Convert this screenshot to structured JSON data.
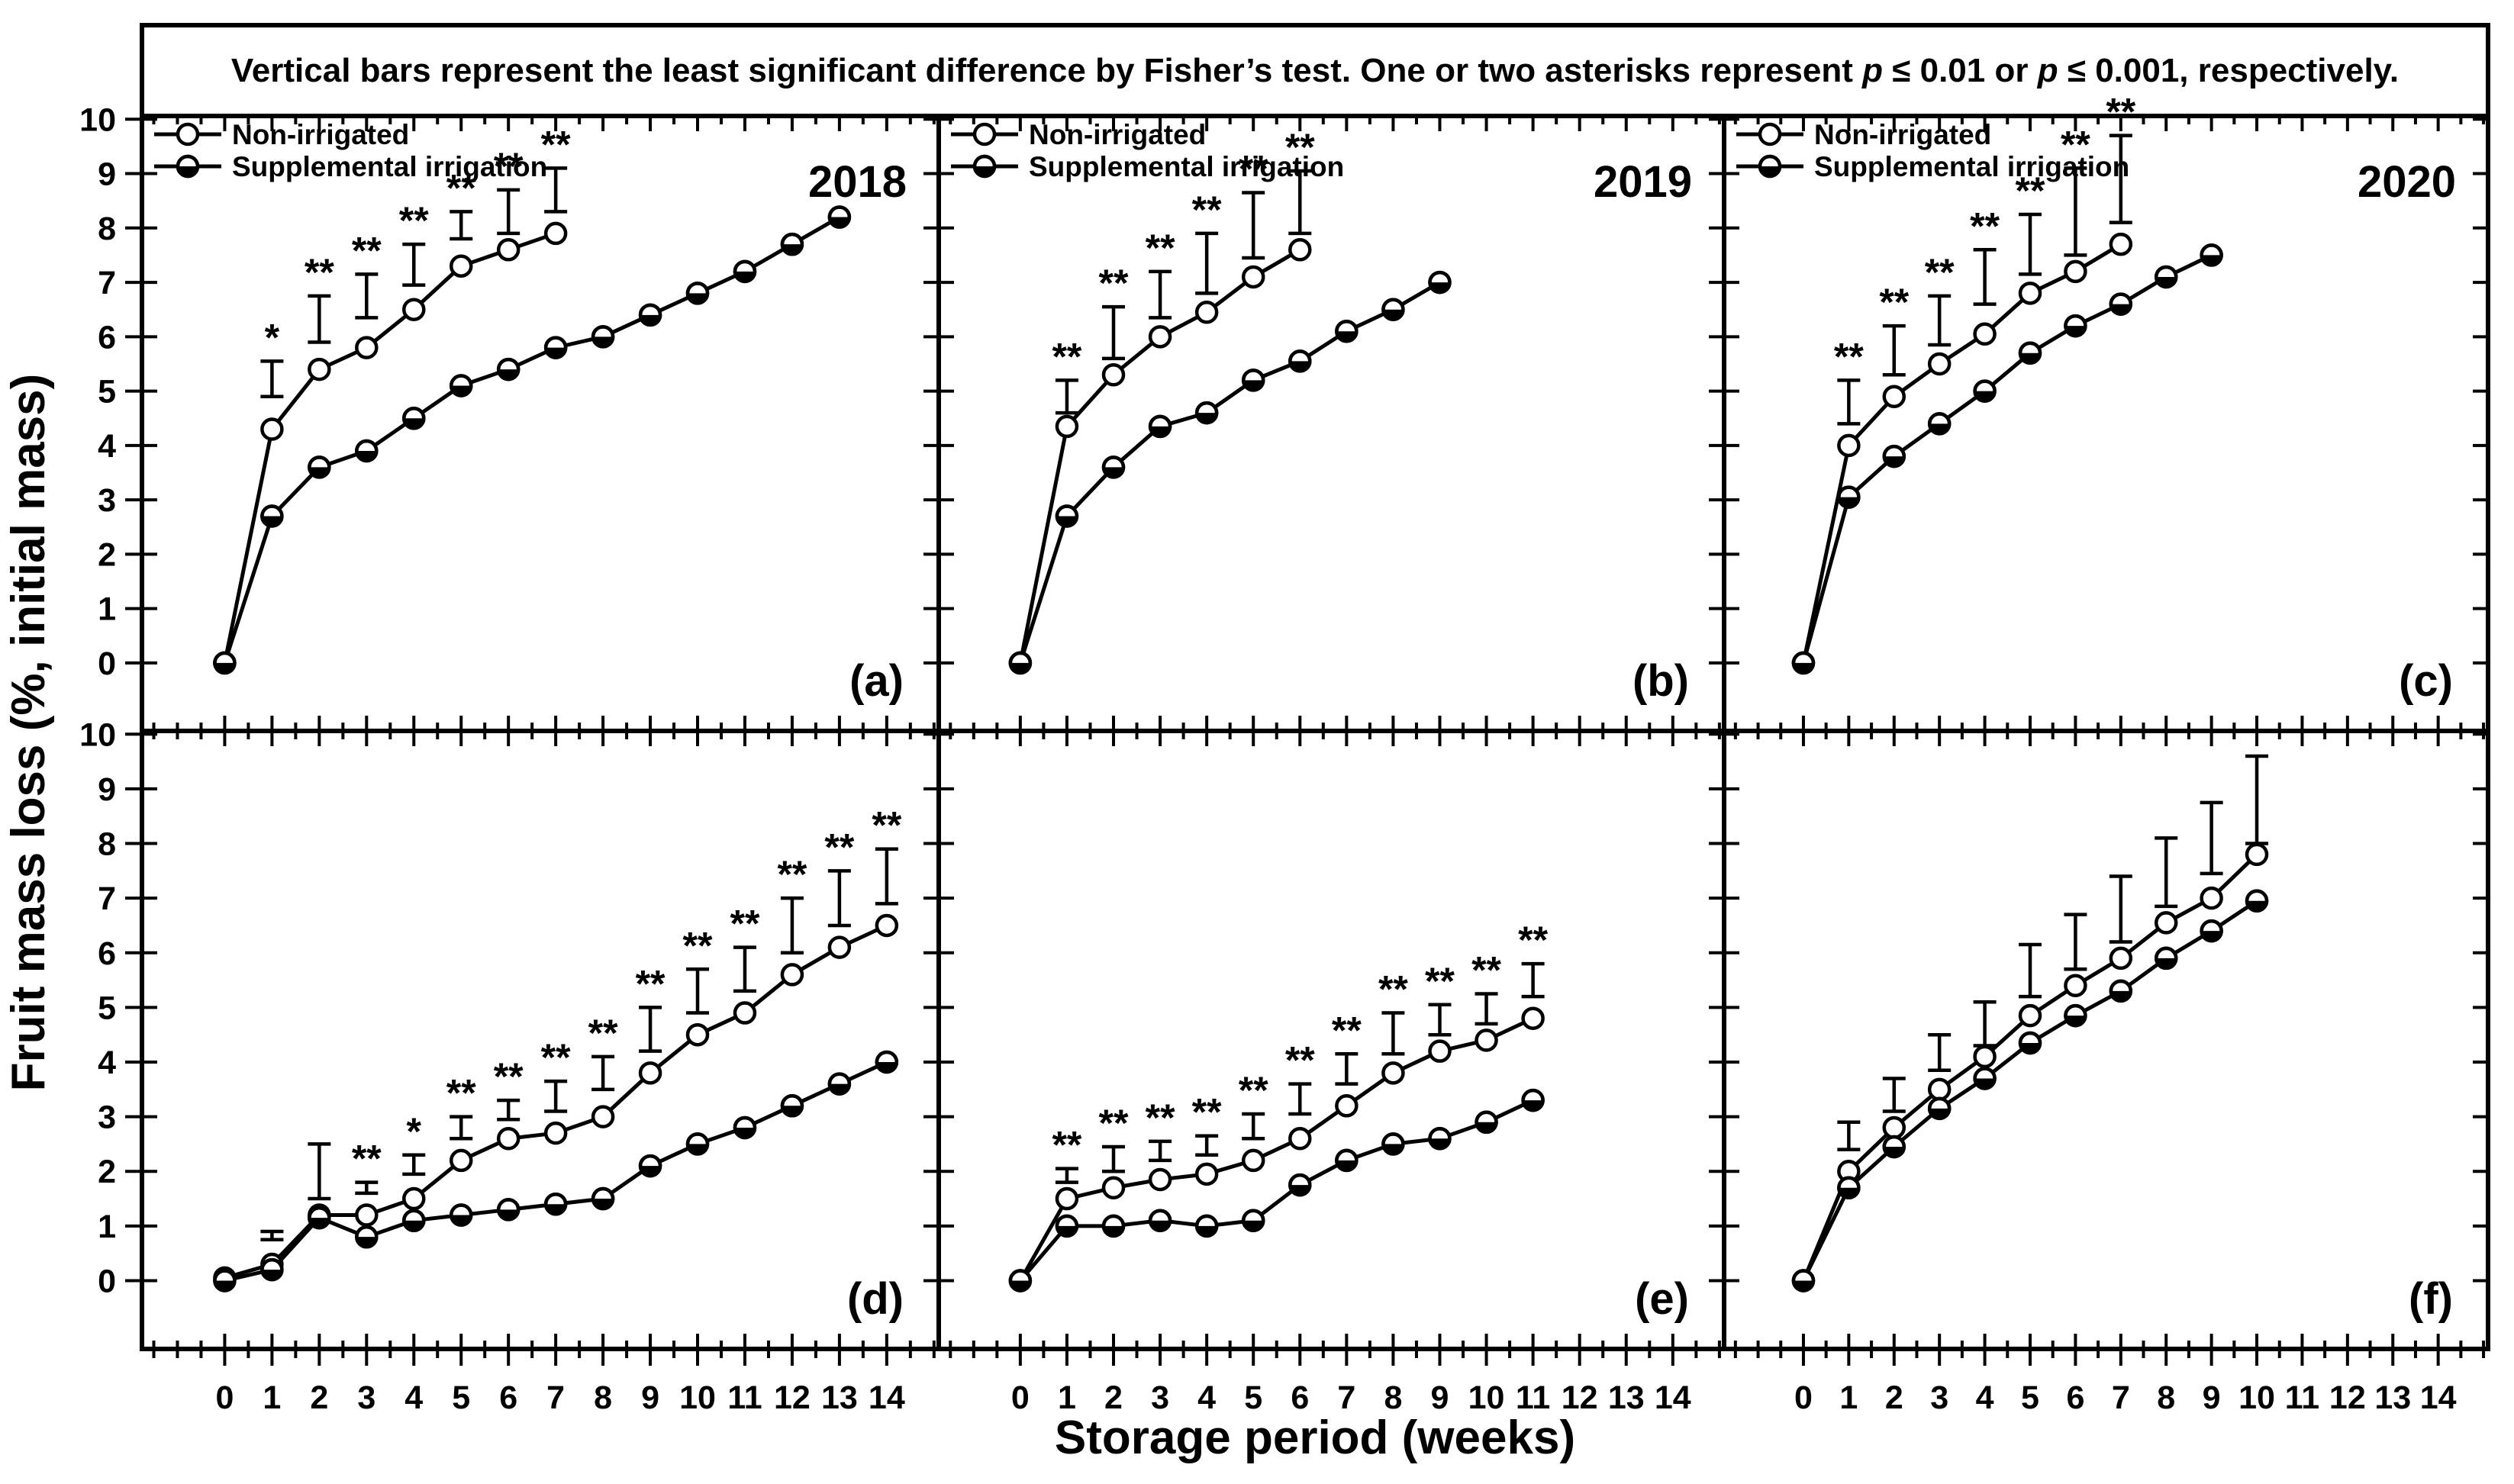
{
  "figure_title": {
    "part1": "Vertical bars represent the least significant difference by Fisher’s test. One or two asterisks represent ",
    "p1": "p",
    "part2": " ≤ 0.01 or ",
    "p2": "p",
    "part3": " ≤ 0.001, respectively."
  },
  "axes": {
    "x_label": "Storage period (weeks)",
    "y_label": "Fruit mass loss (%, initial mass)",
    "x_ticks": [
      0,
      1,
      2,
      3,
      4,
      5,
      6,
      7,
      8,
      9,
      10,
      11,
      12,
      13,
      14
    ],
    "y_ticks": [
      0,
      1,
      2,
      3,
      4,
      5,
      6,
      7,
      8,
      9,
      10
    ],
    "x_range": [
      0,
      14
    ],
    "y_range": [
      0,
      10
    ]
  },
  "legend": {
    "items": [
      {
        "label": "Non-irrigated",
        "marker": "open-circle"
      },
      {
        "label": "Supplemental irrigation",
        "marker": "half-filled-circle"
      }
    ]
  },
  "colors": {
    "foreground": "#000000",
    "background": "#ffffff"
  },
  "chart_data": {
    "type": "line",
    "note_weeks_are_series_index": "week = index in values array, starting at week 0",
    "panels": [
      {
        "id": "a",
        "label": "(a)",
        "year": "2018",
        "row": 0,
        "col": 0,
        "show_legend": true,
        "series": [
          {
            "name": "Non-irrigated",
            "marker": "open",
            "values": [
              0,
              4.3,
              5.4,
              5.8,
              6.5,
              7.3,
              7.6,
              7.9
            ]
          },
          {
            "name": "Supplemental irrigation",
            "marker": "half",
            "values": [
              0,
              2.7,
              3.6,
              3.9,
              4.5,
              5.1,
              5.4,
              5.8,
              6.0,
              6.4,
              6.8,
              7.2,
              7.7,
              8.2
            ]
          }
        ],
        "lsd_bars": [
          {
            "week": 1,
            "bottom": 4.9,
            "top": 5.55,
            "stars": "*"
          },
          {
            "week": 2,
            "bottom": 5.9,
            "top": 6.75,
            "stars": "**"
          },
          {
            "week": 3,
            "bottom": 6.35,
            "top": 7.15,
            "stars": "**"
          },
          {
            "week": 4,
            "bottom": 6.95,
            "top": 7.7,
            "stars": "**"
          },
          {
            "week": 5,
            "bottom": 7.8,
            "top": 8.3,
            "stars": "**"
          },
          {
            "week": 6,
            "bottom": 7.9,
            "top": 8.7,
            "stars": "**"
          },
          {
            "week": 7,
            "bottom": 8.3,
            "top": 9.1,
            "stars": "**"
          }
        ]
      },
      {
        "id": "b",
        "label": "(b)",
        "year": "2019",
        "row": 0,
        "col": 1,
        "show_legend": true,
        "series": [
          {
            "name": "Non-irrigated",
            "marker": "open",
            "values": [
              0,
              4.35,
              5.3,
              6.0,
              6.45,
              7.1,
              7.6
            ]
          },
          {
            "name": "Supplemental irrigation",
            "marker": "half",
            "values": [
              0,
              2.7,
              3.6,
              4.35,
              4.6,
              5.2,
              5.55,
              6.1,
              6.5,
              7.0
            ]
          }
        ],
        "lsd_bars": [
          {
            "week": 1,
            "bottom": 4.6,
            "top": 5.2,
            "stars": "**"
          },
          {
            "week": 2,
            "bottom": 5.6,
            "top": 6.55,
            "stars": "**"
          },
          {
            "week": 3,
            "bottom": 6.35,
            "top": 7.2,
            "stars": "**"
          },
          {
            "week": 4,
            "bottom": 6.8,
            "top": 7.9,
            "stars": "**"
          },
          {
            "week": 5,
            "bottom": 7.45,
            "top": 8.65,
            "stars": "**"
          },
          {
            "week": 6,
            "bottom": 7.9,
            "top": 9.05,
            "stars": "**"
          }
        ]
      },
      {
        "id": "c",
        "label": "(c)",
        "year": "2020",
        "row": 0,
        "col": 2,
        "show_legend": true,
        "series": [
          {
            "name": "Non-irrigated",
            "marker": "open",
            "values": [
              0,
              4.0,
              4.9,
              5.5,
              6.05,
              6.8,
              7.2,
              7.7
            ]
          },
          {
            "name": "Supplemental irrigation",
            "marker": "half",
            "values": [
              0,
              3.05,
              3.8,
              4.4,
              5.0,
              5.7,
              6.2,
              6.6,
              7.1,
              7.5
            ]
          }
        ],
        "lsd_bars": [
          {
            "week": 1,
            "bottom": 4.4,
            "top": 5.2,
            "stars": "**"
          },
          {
            "week": 2,
            "bottom": 5.3,
            "top": 6.2,
            "stars": "**"
          },
          {
            "week": 3,
            "bottom": 5.85,
            "top": 6.75,
            "stars": "**"
          },
          {
            "week": 4,
            "bottom": 6.6,
            "top": 7.6,
            "stars": "**"
          },
          {
            "week": 5,
            "bottom": 7.15,
            "top": 8.25,
            "stars": "**"
          },
          {
            "week": 6,
            "bottom": 7.5,
            "top": 9.1,
            "stars": "**"
          },
          {
            "week": 7,
            "bottom": 8.1,
            "top": 9.7,
            "stars": "**"
          }
        ]
      },
      {
        "id": "d",
        "label": "(d)",
        "year": null,
        "row": 1,
        "col": 0,
        "show_legend": false,
        "series": [
          {
            "name": "Non-irrigated",
            "marker": "open",
            "values": [
              0.05,
              0.3,
              1.2,
              1.2,
              1.5,
              2.2,
              2.6,
              2.7,
              3.0,
              3.8,
              4.5,
              4.9,
              5.6,
              6.1,
              6.5
            ]
          },
          {
            "name": "Supplemental irrigation",
            "marker": "half",
            "values": [
              0,
              0.2,
              1.15,
              0.8,
              1.1,
              1.2,
              1.3,
              1.4,
              1.5,
              2.1,
              2.5,
              2.8,
              3.2,
              3.6,
              4.0
            ]
          }
        ],
        "lsd_bars": [
          {
            "week": 1,
            "bottom": 0.75,
            "top": 0.9,
            "stars": ""
          },
          {
            "week": 2,
            "bottom": 1.5,
            "top": 2.5,
            "stars": ""
          },
          {
            "week": 3,
            "bottom": 1.6,
            "top": 1.8,
            "stars": "**"
          },
          {
            "week": 4,
            "bottom": 1.95,
            "top": 2.3,
            "stars": "*"
          },
          {
            "week": 5,
            "bottom": 2.6,
            "top": 3.0,
            "stars": "**"
          },
          {
            "week": 6,
            "bottom": 2.95,
            "top": 3.3,
            "stars": "**"
          },
          {
            "week": 7,
            "bottom": 3.1,
            "top": 3.65,
            "stars": "**"
          },
          {
            "week": 8,
            "bottom": 3.5,
            "top": 4.1,
            "stars": "**"
          },
          {
            "week": 9,
            "bottom": 4.2,
            "top": 5.0,
            "stars": "**"
          },
          {
            "week": 10,
            "bottom": 4.9,
            "top": 5.7,
            "stars": "**"
          },
          {
            "week": 11,
            "bottom": 5.3,
            "top": 6.1,
            "stars": "**"
          },
          {
            "week": 12,
            "bottom": 6.0,
            "top": 7.0,
            "stars": "**"
          },
          {
            "week": 13,
            "bottom": 6.5,
            "top": 7.5,
            "stars": "**"
          },
          {
            "week": 14,
            "bottom": 6.9,
            "top": 7.9,
            "stars": "**"
          }
        ]
      },
      {
        "id": "e",
        "label": "(e)",
        "year": null,
        "row": 1,
        "col": 1,
        "show_legend": false,
        "series": [
          {
            "name": "Non-irrigated",
            "marker": "open",
            "values": [
              0,
              1.5,
              1.7,
              1.85,
              1.95,
              2.2,
              2.6,
              3.2,
              3.8,
              4.2,
              4.4,
              4.8
            ]
          },
          {
            "name": "Supplemental irrigation",
            "marker": "half",
            "values": [
              0,
              1.0,
              1.0,
              1.1,
              1.0,
              1.1,
              1.75,
              2.2,
              2.5,
              2.6,
              2.9,
              3.3
            ]
          }
        ],
        "lsd_bars": [
          {
            "week": 1,
            "bottom": 1.8,
            "top": 2.05,
            "stars": "**"
          },
          {
            "week": 2,
            "bottom": 2.0,
            "top": 2.45,
            "stars": "**"
          },
          {
            "week": 3,
            "bottom": 2.2,
            "top": 2.55,
            "stars": "**"
          },
          {
            "week": 4,
            "bottom": 2.3,
            "top": 2.65,
            "stars": "**"
          },
          {
            "week": 5,
            "bottom": 2.6,
            "top": 3.05,
            "stars": "**"
          },
          {
            "week": 6,
            "bottom": 3.05,
            "top": 3.6,
            "stars": "**"
          },
          {
            "week": 7,
            "bottom": 3.6,
            "top": 4.15,
            "stars": "**"
          },
          {
            "week": 8,
            "bottom": 4.15,
            "top": 4.9,
            "stars": "**"
          },
          {
            "week": 9,
            "bottom": 4.5,
            "top": 5.05,
            "stars": "**"
          },
          {
            "week": 10,
            "bottom": 4.7,
            "top": 5.25,
            "stars": "**"
          },
          {
            "week": 11,
            "bottom": 5.2,
            "top": 5.8,
            "stars": "**"
          }
        ]
      },
      {
        "id": "f",
        "label": "(f)",
        "year": null,
        "row": 1,
        "col": 2,
        "show_legend": false,
        "series": [
          {
            "name": "Non-irrigated",
            "marker": "open",
            "values": [
              0,
              2.0,
              2.8,
              3.5,
              4.1,
              4.85,
              5.4,
              5.9,
              6.55,
              7.0,
              7.8
            ]
          },
          {
            "name": "Supplemental irrigation",
            "marker": "half",
            "values": [
              0,
              1.7,
              2.45,
              3.15,
              3.7,
              4.35,
              4.85,
              5.3,
              5.9,
              6.4,
              6.95
            ]
          }
        ],
        "lsd_bars": [
          {
            "week": 1,
            "bottom": 2.4,
            "top": 2.9,
            "stars": ""
          },
          {
            "week": 2,
            "bottom": 3.1,
            "top": 3.7,
            "stars": ""
          },
          {
            "week": 3,
            "bottom": 3.85,
            "top": 4.5,
            "stars": ""
          },
          {
            "week": 4,
            "bottom": 4.3,
            "top": 5.1,
            "stars": ""
          },
          {
            "week": 5,
            "bottom": 5.2,
            "top": 6.15,
            "stars": ""
          },
          {
            "week": 6,
            "bottom": 5.7,
            "top": 6.7,
            "stars": ""
          },
          {
            "week": 7,
            "bottom": 6.2,
            "top": 7.4,
            "stars": ""
          },
          {
            "week": 8,
            "bottom": 6.85,
            "top": 8.1,
            "stars": ""
          },
          {
            "week": 9,
            "bottom": 7.45,
            "top": 8.75,
            "stars": ""
          },
          {
            "week": 10,
            "bottom": 8.0,
            "top": 9.6,
            "stars": ""
          }
        ]
      }
    ]
  }
}
